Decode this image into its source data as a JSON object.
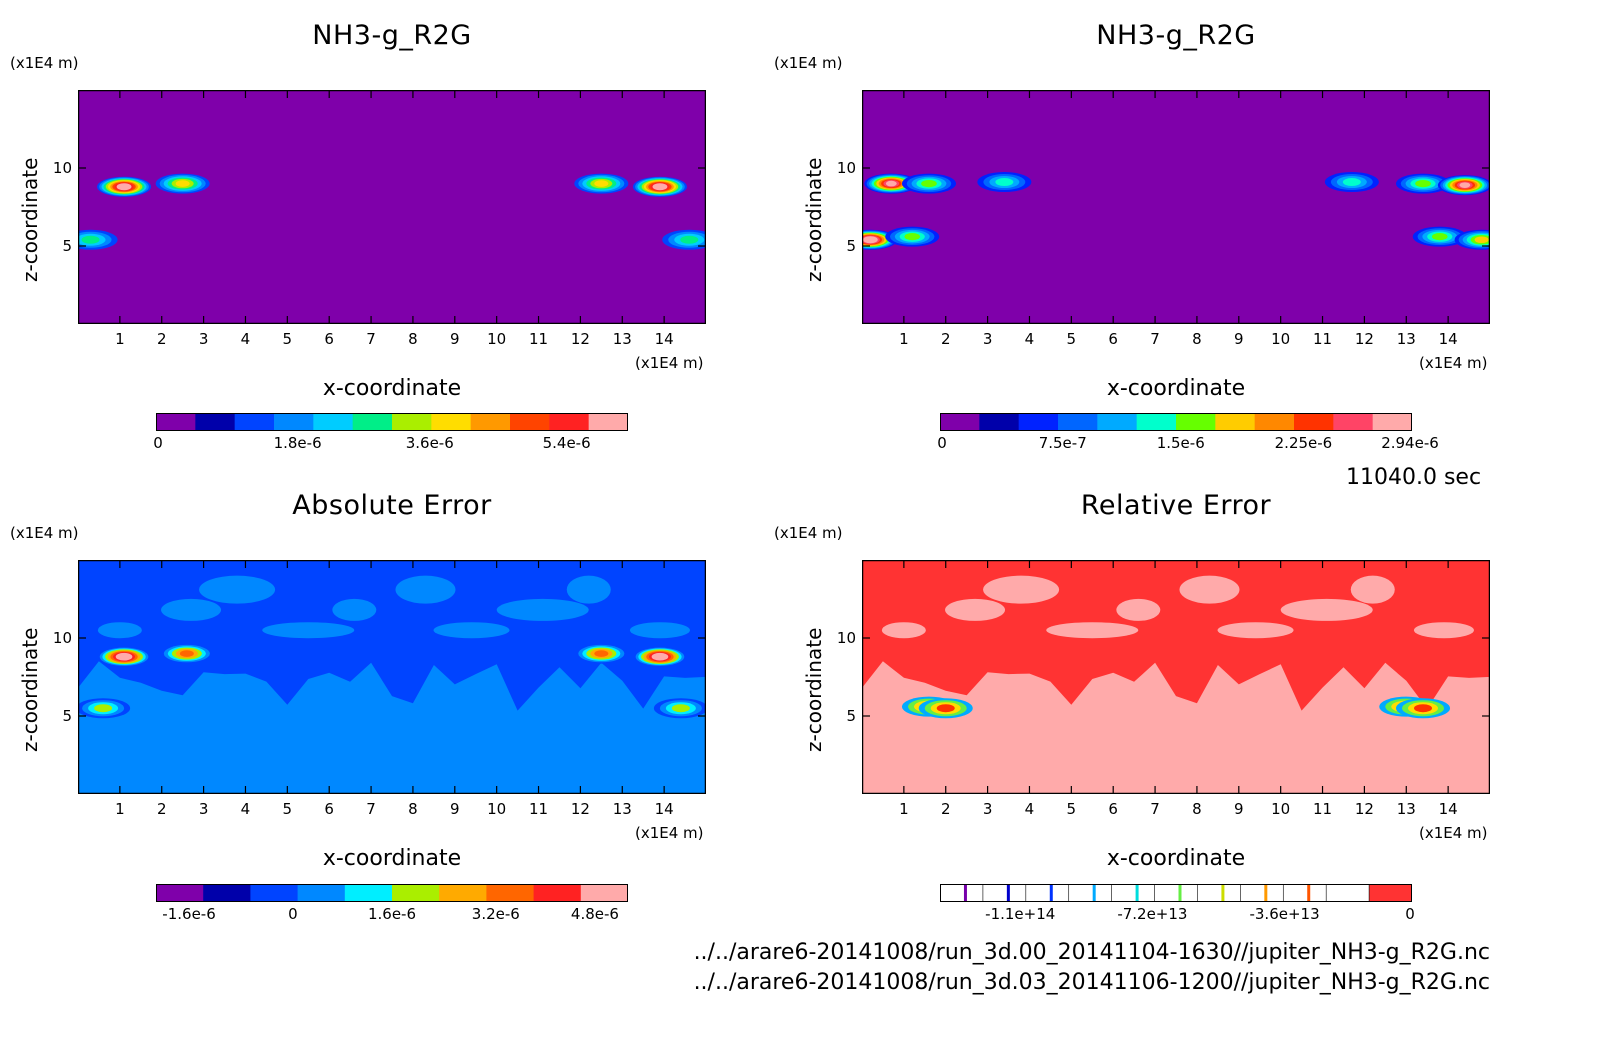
{
  "timestamp": "11040.0 sec",
  "files": [
    "../../arare6-20141008/run_3d.00_20141104-1630//jupiter_NH3-g_R2G.nc",
    "../../arare6-20141008/run_3d.03_20141106-1200//jupiter_NH3-g_R2G.nc"
  ],
  "chart_data": [
    {
      "type": "heatmap",
      "title": "NH3-g_R2G",
      "xlabel": "x-coordinate",
      "ylabel": "z-coordinate",
      "x_unit": "(x1E4 m)",
      "y_unit": "(x1E4 m)",
      "xlim": [
        0,
        15
      ],
      "ylim": [
        0,
        15
      ],
      "xticks": [
        "1",
        "2",
        "3",
        "4",
        "5",
        "6",
        "7",
        "8",
        "9",
        "10",
        "11",
        "12",
        "13",
        "14"
      ],
      "yticks": [
        "5",
        "10"
      ],
      "background_color": "#7f00aa",
      "blobs": [
        {
          "x": 1.1,
          "z": 8.8,
          "peak": 6e-06
        },
        {
          "x": 2.5,
          "z": 9.0,
          "peak": 3e-06
        },
        {
          "x": 12.5,
          "z": 9.0,
          "peak": 3e-06
        },
        {
          "x": 13.9,
          "z": 8.8,
          "peak": 6e-06
        },
        {
          "x": 0.3,
          "z": 5.4,
          "peak": 1.8e-06
        },
        {
          "x": 14.6,
          "z": 5.4,
          "peak": 1.8e-06
        }
      ],
      "colorbar": {
        "colors": [
          "#7f00aa",
          "#0000aa",
          "#0044ff",
          "#0088ff",
          "#00ccff",
          "#00ee88",
          "#aaee00",
          "#ffdd00",
          "#ff9900",
          "#ff4400",
          "#ff2222",
          "#ffaaaa"
        ],
        "labels": [
          "0",
          "1.8e-6",
          "3.6e-6",
          "5.4e-6"
        ]
      }
    },
    {
      "type": "heatmap",
      "title": "NH3-g_R2G",
      "xlabel": "x-coordinate",
      "ylabel": "z-coordinate",
      "x_unit": "(x1E4 m)",
      "y_unit": "(x1E4 m)",
      "xlim": [
        0,
        15
      ],
      "ylim": [
        0,
        15
      ],
      "xticks": [
        "1",
        "2",
        "3",
        "4",
        "5",
        "6",
        "7",
        "8",
        "9",
        "10",
        "11",
        "12",
        "13",
        "14"
      ],
      "yticks": [
        "5",
        "10"
      ],
      "background_color": "#7f00aa",
      "blobs": [
        {
          "x": 0.7,
          "z": 9.0,
          "peak": 2.6e-06
        },
        {
          "x": 1.6,
          "z": 9.0,
          "peak": 1.2e-06
        },
        {
          "x": 3.4,
          "z": 9.1,
          "peak": 8e-07
        },
        {
          "x": 11.7,
          "z": 9.1,
          "peak": 8e-07
        },
        {
          "x": 13.4,
          "z": 9.0,
          "peak": 1.2e-06
        },
        {
          "x": 14.4,
          "z": 8.9,
          "peak": 2.6e-06
        },
        {
          "x": 0.2,
          "z": 5.4,
          "peak": 2.94e-06
        },
        {
          "x": 1.2,
          "z": 5.6,
          "peak": 1.2e-06
        },
        {
          "x": 13.8,
          "z": 5.6,
          "peak": 1.2e-06
        },
        {
          "x": 14.8,
          "z": 5.4,
          "peak": 1.5e-06
        }
      ],
      "colorbar": {
        "colors": [
          "#7f00aa",
          "#0000aa",
          "#0022ff",
          "#0066ff",
          "#00aaff",
          "#00ffcc",
          "#66ff00",
          "#ffcc00",
          "#ff8800",
          "#ff3300",
          "#ff4466",
          "#ffaaaa"
        ],
        "labels": [
          "0",
          "7.5e-7",
          "1.5e-6",
          "2.25e-6",
          "2.94e-6"
        ]
      }
    },
    {
      "type": "heatmap",
      "title": "Absolute Error",
      "xlabel": "x-coordinate",
      "ylabel": "z-coordinate",
      "x_unit": "(x1E4 m)",
      "y_unit": "(x1E4 m)",
      "xlim": [
        0,
        15
      ],
      "ylim": [
        0,
        15
      ],
      "xticks": [
        "1",
        "2",
        "3",
        "4",
        "5",
        "6",
        "7",
        "8",
        "9",
        "10",
        "11",
        "12",
        "13",
        "14"
      ],
      "yticks": [
        "5",
        "10"
      ],
      "background_color": "#0088ff",
      "band_color": "#0044ff",
      "blobs": [
        {
          "x": 1.1,
          "z": 8.8,
          "peak": 5e-06
        },
        {
          "x": 2.6,
          "z": 9.0,
          "peak": 3.2e-06
        },
        {
          "x": 12.5,
          "z": 9.0,
          "peak": 3.2e-06
        },
        {
          "x": 13.9,
          "z": 8.8,
          "peak": 5e-06
        },
        {
          "x": 0.6,
          "z": 5.5,
          "peak": 1.6e-06
        },
        {
          "x": 14.4,
          "z": 5.5,
          "peak": 1.6e-06
        }
      ],
      "colorbar": {
        "colors": [
          "#7f00aa",
          "#0000aa",
          "#0044ff",
          "#0088ff",
          "#00eeff",
          "#aaee00",
          "#ffaa00",
          "#ff6600",
          "#ff2222",
          "#ffaaaa"
        ],
        "labels": [
          "-1.6e-6",
          "0",
          "1.6e-6",
          "3.2e-6",
          "4.8e-6"
        ]
      }
    },
    {
      "type": "heatmap",
      "title": "Relative Error",
      "xlabel": "x-coordinate",
      "ylabel": "z-coordinate",
      "x_unit": "(x1E4 m)",
      "y_unit": "(x1E4 m)",
      "xlim": [
        0,
        15
      ],
      "ylim": [
        0,
        15
      ],
      "xticks": [
        "1",
        "2",
        "3",
        "4",
        "5",
        "6",
        "7",
        "8",
        "9",
        "10",
        "11",
        "12",
        "13",
        "14"
      ],
      "yticks": [
        "5",
        "10"
      ],
      "background_color": "#ffaaaa",
      "band_color": "#ff3333",
      "blobs": [
        {
          "x": 1.6,
          "z": 5.6,
          "peak": 0
        },
        {
          "x": 2.0,
          "z": 5.5,
          "peak": 0
        },
        {
          "x": 13.0,
          "z": 5.6,
          "peak": 0
        },
        {
          "x": 13.4,
          "z": 5.5,
          "peak": 0
        }
      ],
      "colorbar": {
        "colors": [
          "#ffffff",
          "#ffffff",
          "#ffffff",
          "#ffffff",
          "#ffffff",
          "#ffffff",
          "#ffffff",
          "#ffffff",
          "#ffffff",
          "#ffffff",
          "#ff3333"
        ],
        "line_colors": [
          "#7700aa",
          "#0000cc",
          "#0033ff",
          "#00aaff",
          "#00dddd",
          "#66ee44",
          "#ccdd00",
          "#ff9900",
          "#ff5500"
        ],
        "labels": [
          "-1.1e+14",
          "-7.2e+13",
          "-3.6e+13",
          "0"
        ]
      }
    }
  ]
}
